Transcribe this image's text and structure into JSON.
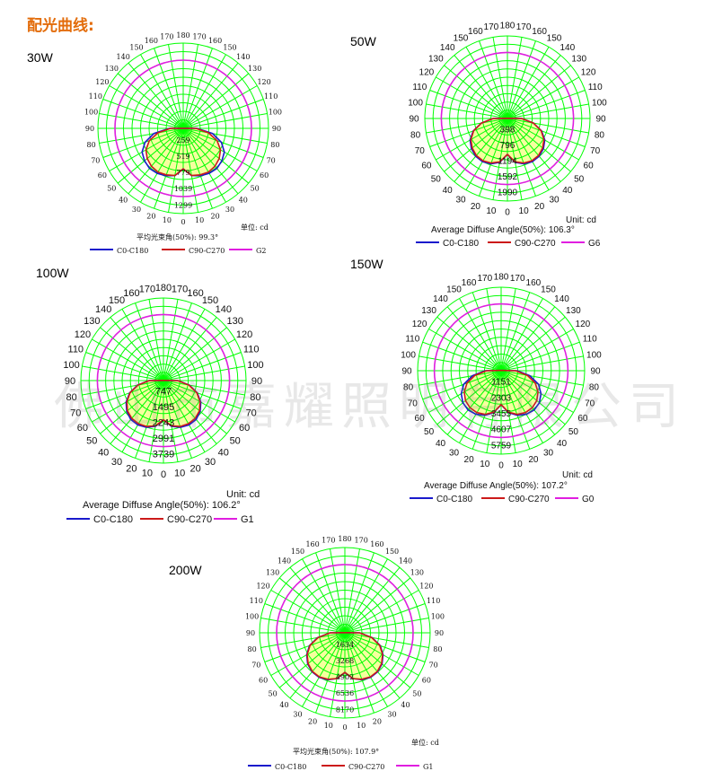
{
  "heading": "配光曲线:",
  "watermark": "佛山市嘉耀照明有限公司",
  "colors": {
    "grid": "#00ff00",
    "c0": "#1a1acc",
    "c90": "#cc1a1a",
    "g": "#e01ee0",
    "fill": "#f5ff9e"
  },
  "chart_data": [
    {
      "type": "polar",
      "power_label": "30W",
      "angle_labels": [
        "180",
        "170",
        "160",
        "150",
        "140",
        "130",
        "120",
        "110",
        "100",
        "90",
        "80",
        "70",
        "60",
        "50",
        "40",
        "30",
        "20",
        "10",
        "0"
      ],
      "intensity_labels": [
        "259",
        "519",
        "779",
        "1039",
        "1299"
      ],
      "intensity_max": 1299,
      "unit_label": "单位: cd",
      "beam_angle_label": "平均光束角(50%): 99.3°",
      "legend": [
        "C0-C180",
        "C90-C270",
        "G2"
      ],
      "series": [
        {
          "name": "C0-C180",
          "profile": [
            0.82,
            0.97,
            1.02,
            1.05,
            1.06,
            1.02,
            0.96,
            0.82,
            0.6,
            0.28,
            0
          ]
        },
        {
          "name": "C90-C270",
          "profile": [
            0.82,
            0.97,
            1.0,
            1.02,
            1.0,
            0.95,
            0.87,
            0.73,
            0.52,
            0.26,
            0
          ]
        }
      ],
      "g_circle_ratio": 1.33
    },
    {
      "type": "polar",
      "power_label": "50W",
      "angle_labels": [
        "180",
        "170",
        "160",
        "150",
        "140",
        "130",
        "120",
        "110",
        "100",
        "90",
        "80",
        "70",
        "60",
        "50",
        "40",
        "30",
        "20",
        "10",
        "0"
      ],
      "intensity_labels": [
        "398",
        "796",
        "1194",
        "1592",
        "1990"
      ],
      "intensity_max": 1990,
      "unit_label": "Unit: cd",
      "beam_angle_label": "Average Diffuse Angle(50%): 106.3°",
      "legend": [
        "C0-C180",
        "C90-C270",
        "G6"
      ],
      "series": [
        {
          "name": "C0-C180",
          "profile": [
            0.75,
            0.93,
            1.01,
            1.04,
            1.03,
            0.98,
            0.9,
            0.76,
            0.55,
            0.3,
            0.02
          ]
        },
        {
          "name": "C90-C270",
          "profile": [
            0.75,
            0.92,
            0.99,
            1.02,
            1.01,
            0.96,
            0.88,
            0.75,
            0.55,
            0.3,
            0.02
          ]
        }
      ],
      "g_circle_ratio": 1.5
    },
    {
      "type": "polar",
      "power_label": "100W",
      "angle_labels": [
        "180",
        "170",
        "160",
        "150",
        "140",
        "130",
        "120",
        "110",
        "100",
        "90",
        "80",
        "70",
        "60",
        "50",
        "40",
        "30",
        "20",
        "10",
        "0"
      ],
      "intensity_labels": [
        "747",
        "1495",
        "2243",
        "2991",
        "3739"
      ],
      "intensity_max": 3739,
      "unit_label": "Unit: cd",
      "beam_angle_label": "Average Diffuse Angle(50%): 106.2°",
      "legend": [
        "C0-C180",
        "C90-C270",
        "G1"
      ],
      "series": [
        {
          "name": "C0-C180",
          "profile": [
            0.82,
            0.97,
            1.04,
            1.07,
            1.06,
            1.0,
            0.9,
            0.75,
            0.55,
            0.3,
            0.02
          ]
        },
        {
          "name": "C90-C270",
          "profile": [
            0.82,
            0.96,
            1.02,
            1.04,
            1.03,
            0.98,
            0.88,
            0.74,
            0.54,
            0.3,
            0.02
          ]
        }
      ],
      "g_circle_ratio": 1.27
    },
    {
      "type": "polar",
      "power_label": "150W",
      "angle_labels": [
        "180",
        "170",
        "160",
        "150",
        "140",
        "130",
        "120",
        "110",
        "100",
        "90",
        "80",
        "70",
        "60",
        "50",
        "40",
        "30",
        "20",
        "10",
        "0"
      ],
      "intensity_labels": [
        "1151",
        "2303",
        "3455",
        "4607",
        "5759"
      ],
      "intensity_max": 5759,
      "unit_label": "Unit: cd",
      "beam_angle_label": "Average Diffuse Angle(50%): 107.2°",
      "legend": [
        "C0-C180",
        "C90-C270",
        "G0"
      ],
      "series": [
        {
          "name": "C0-C180",
          "profile": [
            0.7,
            0.88,
            0.98,
            1.04,
            1.06,
            1.03,
            0.95,
            0.82,
            0.6,
            0.33,
            0.03
          ]
        },
        {
          "name": "C90-C270",
          "profile": [
            0.7,
            0.87,
            0.96,
            1.0,
            1.0,
            0.96,
            0.88,
            0.75,
            0.55,
            0.3,
            0.03
          ]
        }
      ],
      "g_circle_ratio": 1.5
    },
    {
      "type": "polar",
      "power_label": "200W",
      "angle_labels": [
        "180",
        "170",
        "160",
        "150",
        "140",
        "130",
        "120",
        "110",
        "100",
        "90",
        "80",
        "70",
        "60",
        "50",
        "40",
        "30",
        "20",
        "10",
        "0"
      ],
      "intensity_labels": [
        "1634",
        "3268",
        "4902",
        "6536",
        "8170"
      ],
      "intensity_max": 8170,
      "unit_label": "单位: cd",
      "beam_angle_label": "平均光束角(50%): 107.9°",
      "legend": [
        "C0-C180",
        "C90-C270",
        "G1"
      ],
      "series": [
        {
          "name": "C0-C180",
          "profile": [
            0.8,
            0.94,
            1.01,
            1.04,
            1.03,
            0.98,
            0.89,
            0.76,
            0.56,
            0.3,
            0.02
          ]
        },
        {
          "name": "C90-C270",
          "profile": [
            0.8,
            0.94,
            1.0,
            1.03,
            1.02,
            0.97,
            0.88,
            0.75,
            0.55,
            0.3,
            0.02
          ]
        }
      ],
      "g_circle_ratio": 1.48
    }
  ]
}
